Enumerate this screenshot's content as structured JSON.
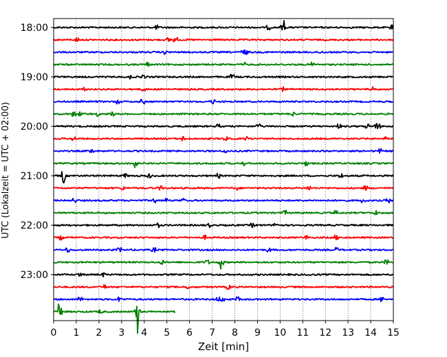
{
  "chart_data": {
    "type": "line",
    "title": "",
    "xlabel": "Zeit  [min]",
    "ylabel": "UTC (Lokalzeit = UTC + 02:00)",
    "xlim": [
      0,
      15
    ],
    "x_ticks": [
      "0",
      "1",
      "2",
      "3",
      "4",
      "5",
      "6",
      "7",
      "8",
      "9",
      "10",
      "11",
      "12",
      "13",
      "14",
      "15"
    ],
    "y_tick_labels": [
      "18:00",
      "19:00",
      "20:00",
      "21:00",
      "22:00",
      "23:00"
    ],
    "grid": "vertical dotted lines at each minute",
    "series": [
      {
        "start": "18:00",
        "color": "#000000",
        "end_minute": 15
      },
      {
        "start": "18:15",
        "color": "#ff0000",
        "end_minute": 15
      },
      {
        "start": "18:30",
        "color": "#0000ff",
        "end_minute": 15
      },
      {
        "start": "18:45",
        "color": "#008000",
        "end_minute": 15
      },
      {
        "start": "19:00",
        "color": "#000000",
        "end_minute": 15
      },
      {
        "start": "19:15",
        "color": "#ff0000",
        "end_minute": 15
      },
      {
        "start": "19:30",
        "color": "#0000ff",
        "end_minute": 15
      },
      {
        "start": "19:45",
        "color": "#008000",
        "end_minute": 15
      },
      {
        "start": "20:00",
        "color": "#000000",
        "end_minute": 15
      },
      {
        "start": "20:15",
        "color": "#ff0000",
        "end_minute": 15
      },
      {
        "start": "20:30",
        "color": "#0000ff",
        "end_minute": 15
      },
      {
        "start": "20:45",
        "color": "#008000",
        "end_minute": 15
      },
      {
        "start": "21:00",
        "color": "#000000",
        "end_minute": 15
      },
      {
        "start": "21:15",
        "color": "#ff0000",
        "end_minute": 15
      },
      {
        "start": "21:30",
        "color": "#0000ff",
        "end_minute": 15
      },
      {
        "start": "21:45",
        "color": "#008000",
        "end_minute": 15
      },
      {
        "start": "22:00",
        "color": "#000000",
        "end_minute": 15
      },
      {
        "start": "22:15",
        "color": "#ff0000",
        "end_minute": 15
      },
      {
        "start": "22:30",
        "color": "#0000ff",
        "end_minute": 15
      },
      {
        "start": "22:45",
        "color": "#008000",
        "end_minute": 15
      },
      {
        "start": "23:00",
        "color": "#000000",
        "end_minute": 15
      },
      {
        "start": "23:15",
        "color": "#ff0000",
        "end_minute": 15
      },
      {
        "start": "23:30",
        "color": "#0000ff",
        "end_minute": 15
      },
      {
        "start": "23:45",
        "color": "#008000",
        "end_minute": 5.4
      }
    ]
  }
}
